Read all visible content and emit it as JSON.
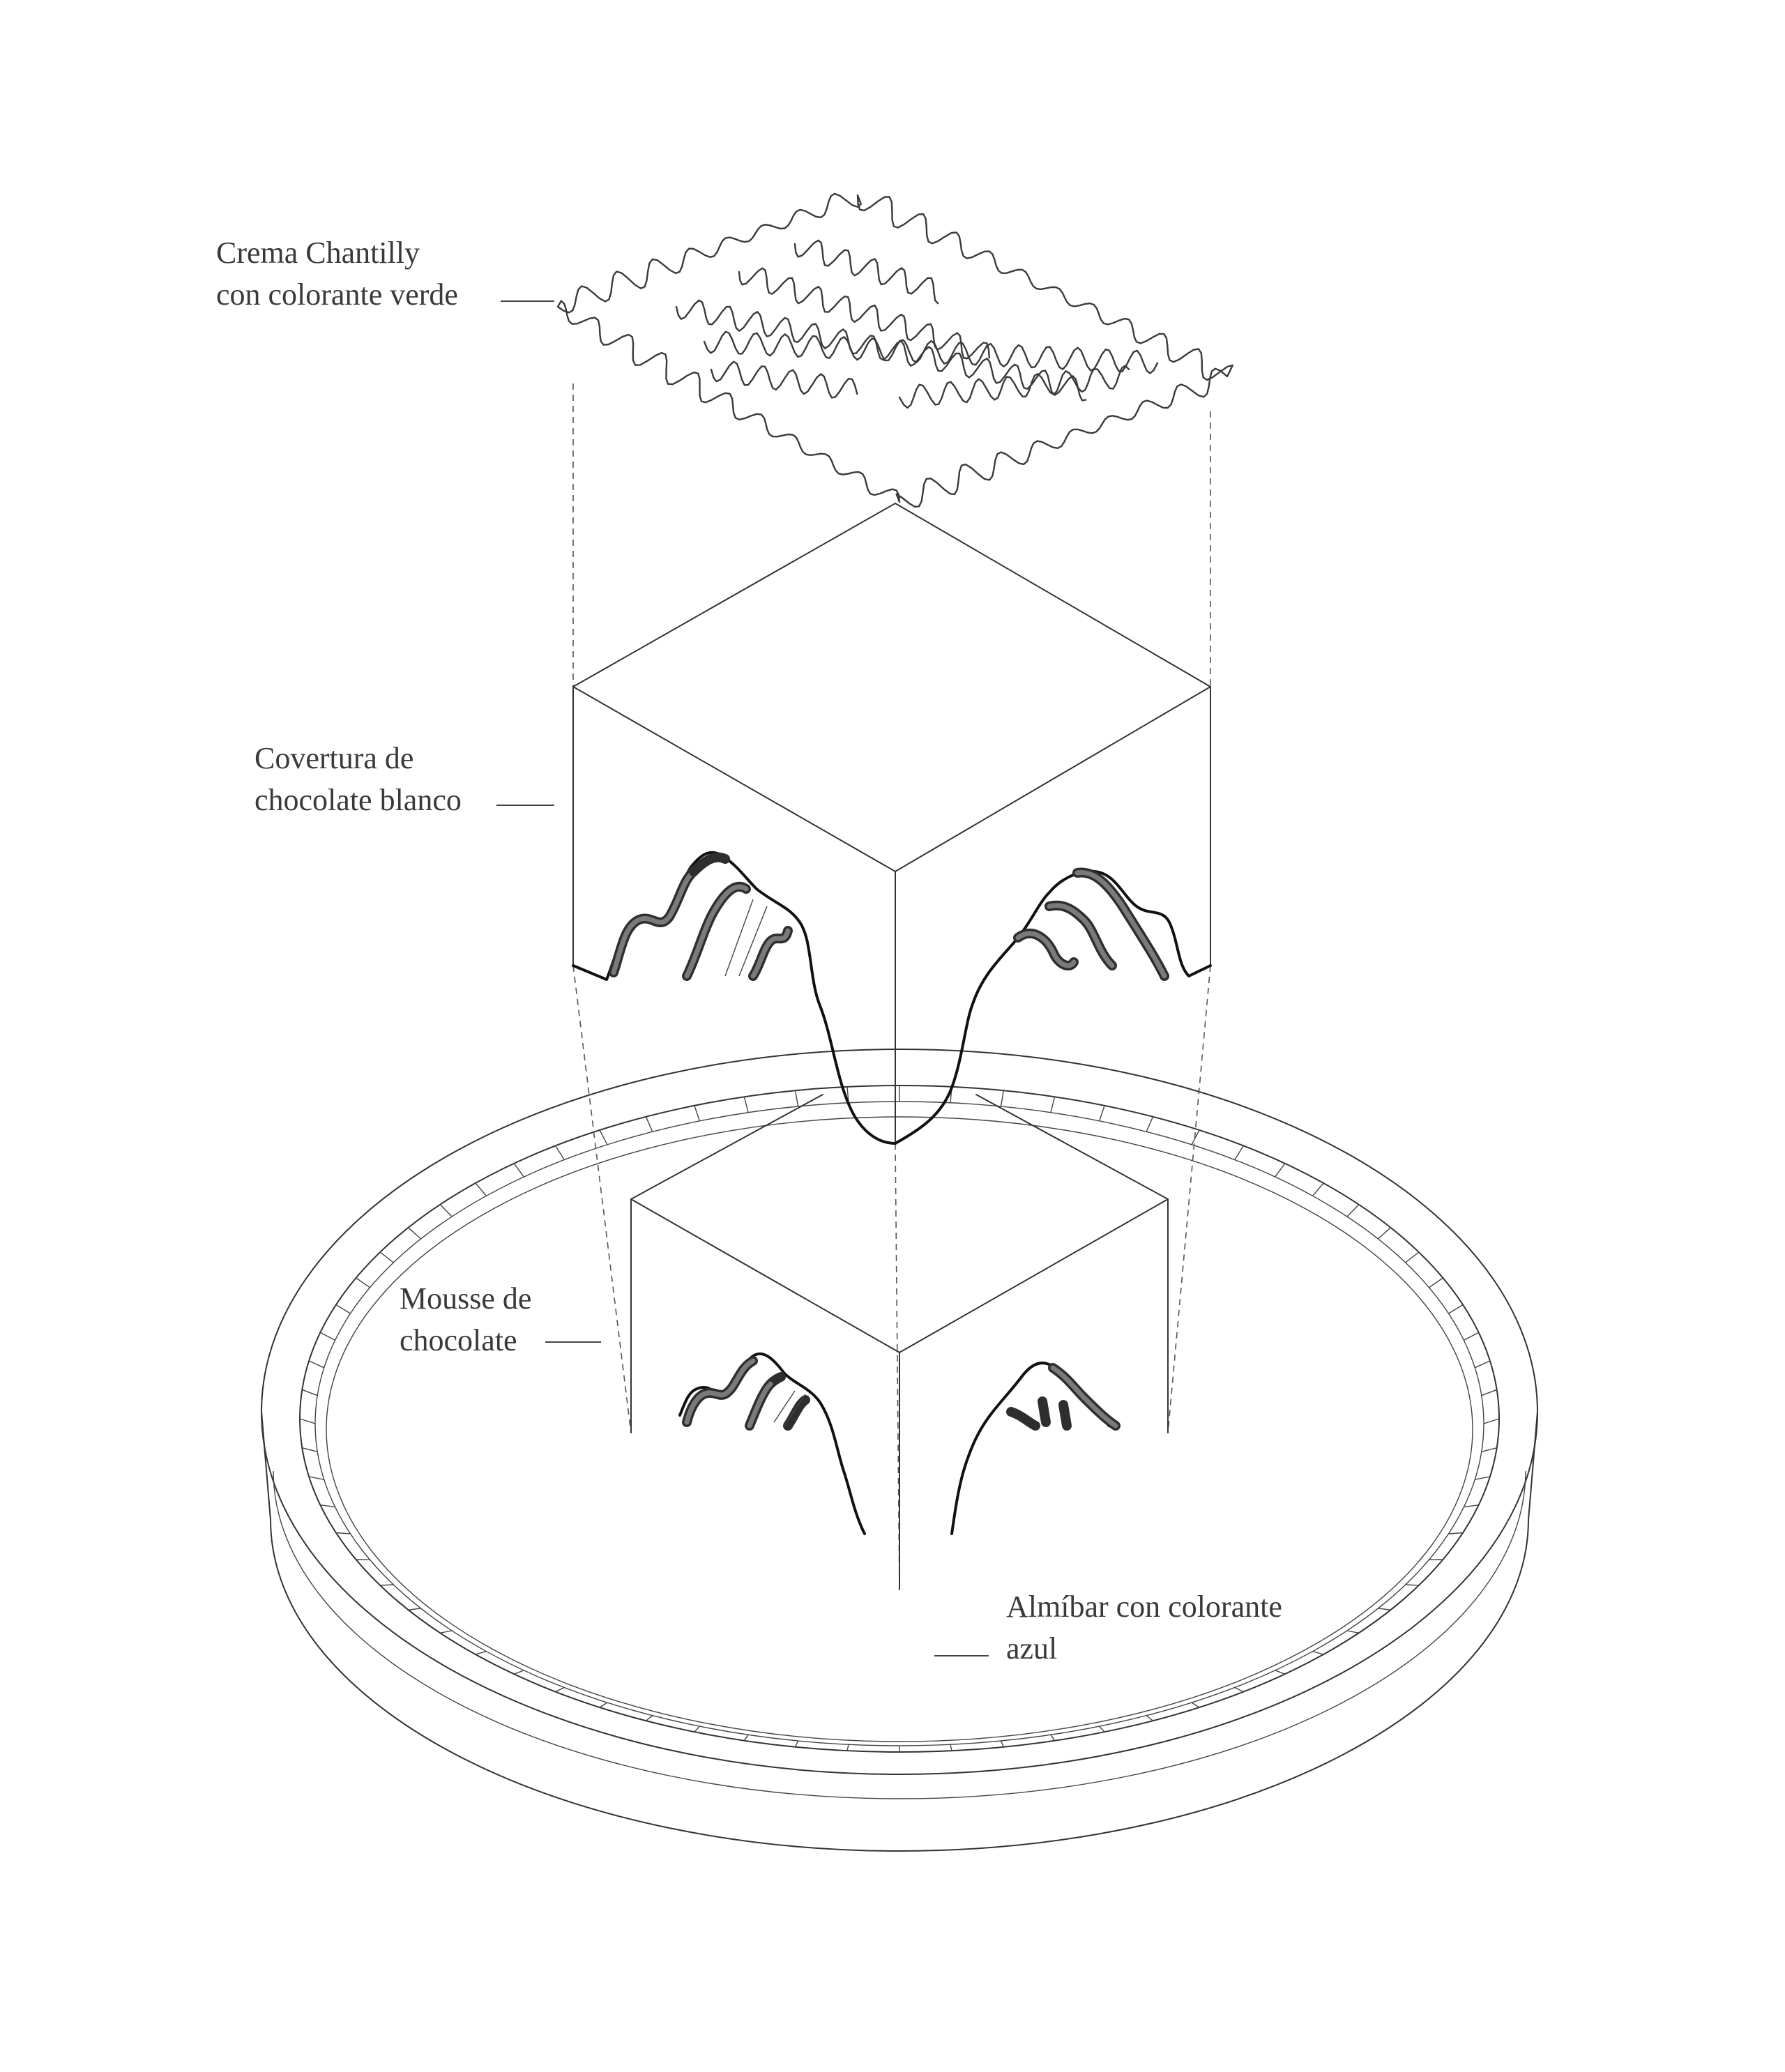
{
  "labels": {
    "crema": [
      "Crema Chantilly",
      "con colorante verde"
    ],
    "covertura": [
      "Covertura de",
      "chocolate blanco"
    ],
    "mousse": [
      "Mousse de",
      "chocolate"
    ],
    "almibar": [
      "Almíbar con colorante",
      "azul"
    ]
  },
  "colors": {
    "line": "#333333",
    "text": "#3a3a3a",
    "ribbon_dark": "#2e2e2e",
    "ribbon_light": "#7a7a7a",
    "background": "#ffffff"
  }
}
